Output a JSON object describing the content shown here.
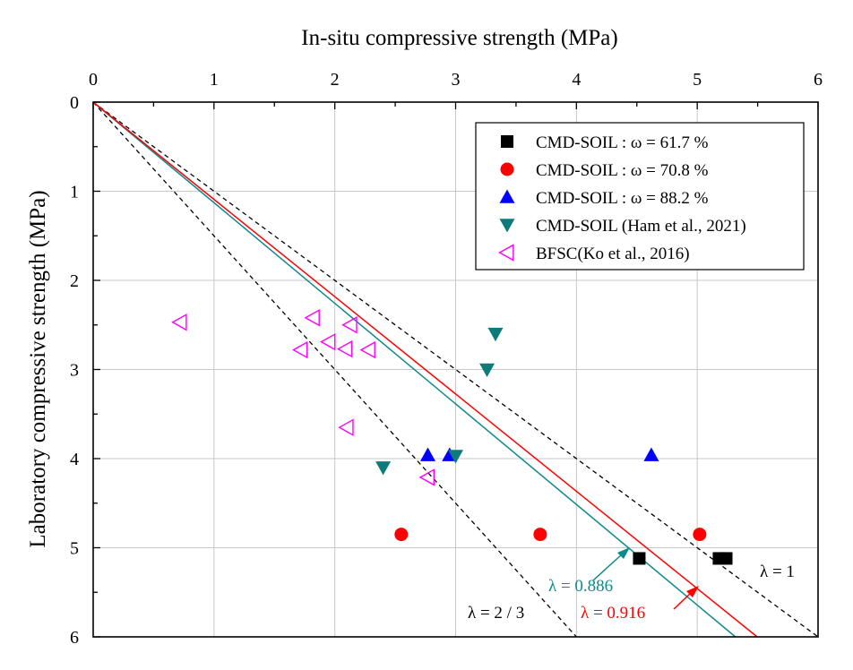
{
  "chart_data": {
    "type": "scatter",
    "xlabel": "In-situ compressive strength (MPa)",
    "ylabel": "Laboratory compressive strength (MPa)",
    "xlim": [
      0,
      6
    ],
    "ylim": [
      0,
      6
    ],
    "x_axis_position": "top",
    "y_axis_inverted": true,
    "grid": true,
    "legend_position": "top-right",
    "x_ticks": [
      "0",
      "1",
      "2",
      "3",
      "4",
      "5",
      "6"
    ],
    "y_ticks": [
      "0",
      "1",
      "2",
      "3",
      "4",
      "5",
      "6"
    ],
    "series": [
      {
        "name": "CMD-SOIL : ω = 61.7 %",
        "marker": "square",
        "color": "#000000",
        "points": [
          [
            4.52,
            5.12
          ],
          [
            5.18,
            5.12
          ],
          [
            5.24,
            5.12
          ]
        ]
      },
      {
        "name": "CMD-SOIL : ω = 70.8 %",
        "marker": "circle",
        "color": "#ff0000",
        "points": [
          [
            2.55,
            4.85
          ],
          [
            3.7,
            4.85
          ],
          [
            5.02,
            4.85
          ]
        ]
      },
      {
        "name": "CMD-SOIL : ω = 88.2 %",
        "marker": "triangle-up",
        "color": "#0000ff",
        "points": [
          [
            2.77,
            3.96
          ],
          [
            2.95,
            3.96
          ],
          [
            4.62,
            3.96
          ]
        ]
      },
      {
        "name": "CMD-SOIL (Ham et al., 2021)",
        "marker": "triangle-down",
        "color": "#0e7b7b",
        "points": [
          [
            3.33,
            2.6
          ],
          [
            3.26,
            3.0
          ],
          [
            2.4,
            4.1
          ],
          [
            3.0,
            3.97
          ]
        ]
      },
      {
        "name": "BFSC(Ko et al., 2016)",
        "marker": "triangle-left-open",
        "color": "#ff00ff",
        "points": [
          [
            0.72,
            2.47
          ],
          [
            1.82,
            2.42
          ],
          [
            2.13,
            2.5
          ],
          [
            1.95,
            2.69
          ],
          [
            1.72,
            2.78
          ],
          [
            2.09,
            2.77
          ],
          [
            2.28,
            2.78
          ],
          [
            2.1,
            3.65
          ],
          [
            2.77,
            4.21
          ]
        ]
      }
    ],
    "lines": [
      {
        "label": "λ = 1",
        "slope": 1,
        "style": "dashed",
        "color": "#000000"
      },
      {
        "label": "λ = 2 / 3",
        "slope": 1.5,
        "style": "dashed",
        "color": "#000000"
      },
      {
        "label": "λ = 0.886",
        "slope": 1.1287,
        "style": "solid",
        "color": "#0e8a8a"
      },
      {
        "label": "λ = 0.916",
        "slope": 1.0917,
        "style": "solid",
        "color": "#ff0000"
      }
    ]
  }
}
